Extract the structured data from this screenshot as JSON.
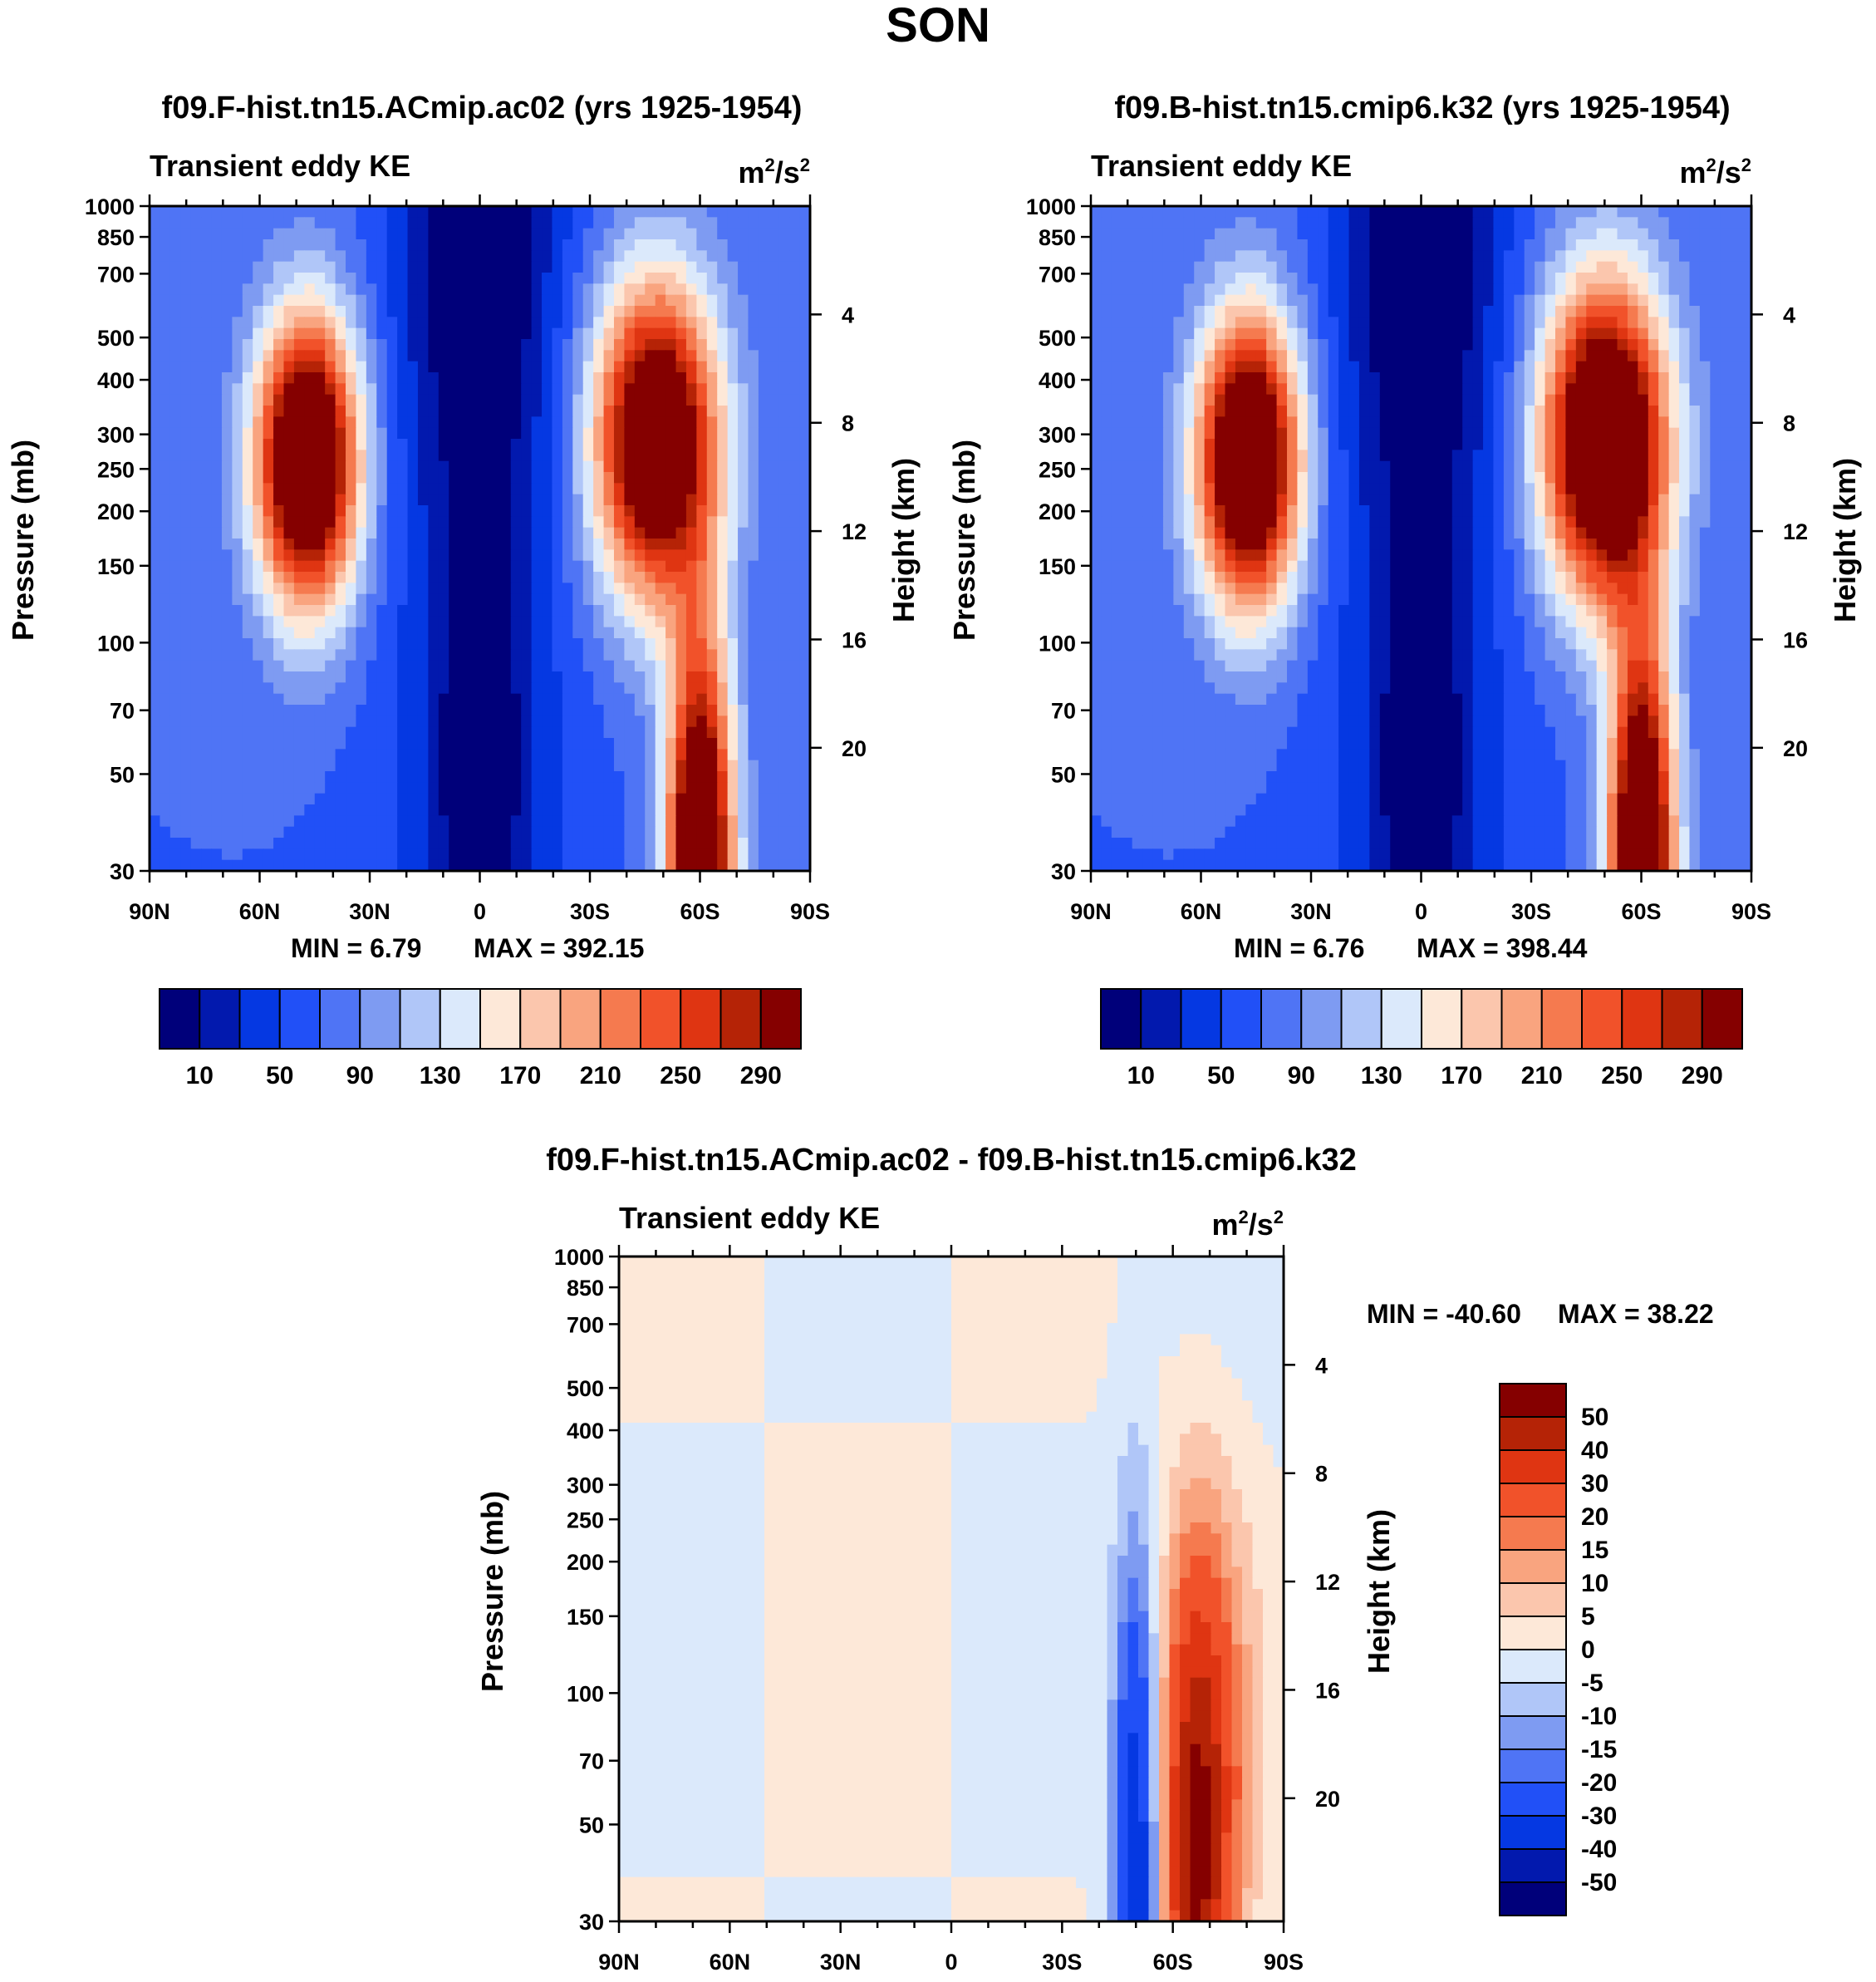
{
  "page_title": "SON",
  "colors": {
    "abs_palette": [
      "#00007a",
      "#0219ae",
      "#0538e2",
      "#2150f7",
      "#4f74f5",
      "#7e9bf2",
      "#b0c6f8",
      "#dbe9fb",
      "#fde8d8",
      "#fbc6ad",
      "#f9a47f",
      "#f57a4f",
      "#f1522a",
      "#df3512",
      "#b52306",
      "#850000"
    ],
    "diff_palette": [
      "#00007a",
      "#0219ae",
      "#0538e2",
      "#2150f7",
      "#4f74f5",
      "#7e9bf2",
      "#b0c6f8",
      "#dbe9fb",
      "#fde8d8",
      "#fbc6ad",
      "#f9a47f",
      "#f57a4f",
      "#f1522a",
      "#df3512",
      "#b52306",
      "#850000"
    ]
  },
  "chart_data": [
    {
      "type": "heatmap",
      "id": "panel-1",
      "title": "f09.F-hist.tn15.ACmip.ac02 (yrs 1925-1954)",
      "subtitle_left": "Transient eddy KE",
      "units": {
        "base": "m",
        "exp1": "2",
        "mid": "/s",
        "exp2": "2"
      },
      "ylabel": "Pressure (mb)",
      "ylabel_right": "Height (km)",
      "y_ticks": [
        "30",
        "50",
        "70",
        "100",
        "150",
        "200",
        "250",
        "300",
        "400",
        "500",
        "700",
        "850",
        "1000"
      ],
      "y_ticks_right": [
        "20",
        "16",
        "12",
        "8",
        "4"
      ],
      "x_ticks": [
        "90N",
        "60N",
        "30N",
        "0",
        "30S",
        "60S",
        "90S"
      ],
      "xlim": [
        90,
        -90
      ],
      "ylim": [
        1000,
        30
      ],
      "min_label": "MIN =   6.79",
      "max_label": "MAX = 392.15",
      "min": 6.79,
      "max": 392.15,
      "levels": [
        10,
        30,
        50,
        70,
        90,
        110,
        130,
        150,
        170,
        190,
        210,
        230,
        250,
        270,
        290
      ],
      "colorbar_labels": [
        "10",
        "50",
        "90",
        "130",
        "170",
        "210",
        "250",
        "290"
      ],
      "features": [
        {
          "lat": 47,
          "p": 260,
          "value": 392,
          "w_lat": 14,
          "w_p": 0.22
        },
        {
          "lat": -48,
          "p": 290,
          "value": 370,
          "w_lat": 17,
          "w_p": 0.24
        },
        {
          "lat": -60,
          "p": 30,
          "value": 395,
          "w_lat": 9,
          "w_p": 0.35
        },
        {
          "lat": 0,
          "p": 50,
          "value": 8,
          "w_lat": 12,
          "w_p": 0.3
        },
        {
          "lat": 0,
          "p": 700,
          "value": 10,
          "w_lat": 20,
          "w_p": 0.4
        }
      ]
    },
    {
      "type": "heatmap",
      "id": "panel-2",
      "title": "f09.B-hist.tn15.cmip6.k32 (yrs 1925-1954)",
      "subtitle_left": "Transient eddy KE",
      "units": {
        "base": "m",
        "exp1": "2",
        "mid": "/s",
        "exp2": "2"
      },
      "ylabel": "Pressure (mb)",
      "ylabel_right": "Height (km)",
      "y_ticks": [
        "30",
        "50",
        "70",
        "100",
        "150",
        "200",
        "250",
        "300",
        "400",
        "500",
        "700",
        "850",
        "1000"
      ],
      "y_ticks_right": [
        "20",
        "16",
        "12",
        "8",
        "4"
      ],
      "x_ticks": [
        "90N",
        "60N",
        "30N",
        "0",
        "30S",
        "60S",
        "90S"
      ],
      "xlim": [
        90,
        -90
      ],
      "ylim": [
        1000,
        30
      ],
      "min_label": "MIN =   6.76",
      "max_label": "MAX = 398.44",
      "min": 6.76,
      "max": 398.44,
      "levels": [
        10,
        30,
        50,
        70,
        90,
        110,
        130,
        150,
        170,
        190,
        210,
        230,
        250,
        270,
        290
      ],
      "colorbar_labels": [
        "10",
        "50",
        "90",
        "130",
        "170",
        "210",
        "250",
        "290"
      ],
      "features": [
        {
          "lat": 47,
          "p": 260,
          "value": 390,
          "w_lat": 14,
          "w_p": 0.22
        },
        {
          "lat": -50,
          "p": 290,
          "value": 398,
          "w_lat": 17,
          "w_p": 0.24
        },
        {
          "lat": -60,
          "p": 30,
          "value": 398,
          "w_lat": 9,
          "w_p": 0.35
        },
        {
          "lat": 0,
          "p": 50,
          "value": 8,
          "w_lat": 12,
          "w_p": 0.3
        },
        {
          "lat": 0,
          "p": 700,
          "value": 10,
          "w_lat": 20,
          "w_p": 0.4
        }
      ]
    },
    {
      "type": "heatmap",
      "id": "panel-diff",
      "title": "f09.F-hist.tn15.ACmip.ac02 - f09.B-hist.tn15.cmip6.k32",
      "subtitle_left": "Transient eddy KE",
      "units": {
        "base": "m",
        "exp1": "2",
        "mid": "/s",
        "exp2": "2"
      },
      "ylabel": "Pressure (mb)",
      "ylabel_right": "Height (km)",
      "y_ticks": [
        "30",
        "50",
        "70",
        "100",
        "150",
        "200",
        "250",
        "300",
        "400",
        "500",
        "700",
        "850",
        "1000"
      ],
      "y_ticks_right": [
        "20",
        "16",
        "12",
        "8",
        "4"
      ],
      "x_ticks": [
        "90N",
        "60N",
        "30N",
        "0",
        "30S",
        "60S",
        "90S"
      ],
      "xlim": [
        90,
        -90
      ],
      "ylim": [
        1000,
        30
      ],
      "min_label": "MIN = -40.60",
      "max_label": "MAX =  38.22",
      "min": -40.6,
      "max": 38.22,
      "levels": [
        -50,
        -40,
        -30,
        -20,
        -15,
        -10,
        -5,
        0,
        5,
        10,
        15,
        20,
        30,
        40,
        50
      ],
      "colorbar_labels": [
        "50",
        "40",
        "30",
        "20",
        "15",
        "10",
        "5",
        "0",
        "-5",
        "-10",
        "-15",
        "-20",
        "-30",
        "-40",
        "-50"
      ],
      "features": [
        {
          "lat": -50,
          "p": 35,
          "value": -40,
          "w_lat": 6,
          "w_p": 0.5
        },
        {
          "lat": -66,
          "p": 35,
          "value": 38,
          "w_lat": 8,
          "w_p": 0.45
        },
        {
          "lat": -70,
          "p": 60,
          "value": 22,
          "w_lat": 12,
          "w_p": 0.4
        }
      ]
    }
  ]
}
